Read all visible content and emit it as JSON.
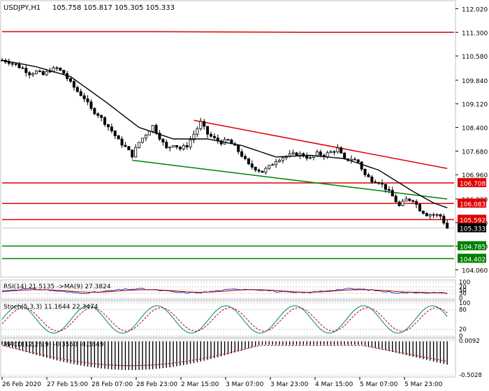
{
  "header": {
    "symbol": "USDJPY,H1",
    "ohlc": "105.758 105.817 105.305 105.333"
  },
  "chart_data": {
    "type": "candlestick",
    "price_axis": {
      "ylim": [
        103.9,
        112.2
      ],
      "ticks": [
        "112.020",
        "111.300",
        "110.580",
        "109.840",
        "109.120",
        "108.400",
        "107.680",
        "106.960",
        "106.220",
        "105.500",
        "104.780",
        "104.060"
      ]
    },
    "x_ticks": [
      "26 Feb 2020",
      "27 Feb 15:00",
      "28 Feb 07:00",
      "28 Feb 23:00",
      "2 Mar 15:00",
      "3 Mar 07:00",
      "3 Mar 23:00",
      "4 Mar 15:00",
      "5 Mar 07:00",
      "5 Mar 23:00"
    ],
    "current_price": 105.333,
    "ohlc_last": {
      "open": 105.758,
      "high": 105.817,
      "low": 105.305,
      "close": 105.333
    },
    "close_path": [
      [
        0,
        110.45
      ],
      [
        2,
        110.4
      ],
      [
        4,
        110.3
      ],
      [
        6,
        110.2
      ],
      [
        8,
        110.05
      ],
      [
        10,
        110.1
      ],
      [
        12,
        110.0
      ],
      [
        14,
        110.15
      ],
      [
        16,
        110.2
      ],
      [
        18,
        110.05
      ],
      [
        20,
        109.75
      ],
      [
        22,
        109.5
      ],
      [
        24,
        109.3
      ],
      [
        26,
        108.95
      ],
      [
        28,
        108.8
      ],
      [
        30,
        108.55
      ],
      [
        32,
        108.3
      ],
      [
        34,
        108.0
      ],
      [
        36,
        107.8
      ],
      [
        38,
        107.55
      ],
      [
        40,
        107.95
      ],
      [
        42,
        108.2
      ],
      [
        44,
        108.45
      ],
      [
        46,
        108.1
      ],
      [
        48,
        107.75
      ],
      [
        50,
        107.9
      ],
      [
        52,
        107.75
      ],
      [
        54,
        107.85
      ],
      [
        56,
        108.2
      ],
      [
        58,
        108.55
      ],
      [
        60,
        108.2
      ],
      [
        62,
        108.05
      ],
      [
        64,
        107.95
      ],
      [
        66,
        108.0
      ],
      [
        68,
        107.8
      ],
      [
        70,
        107.55
      ],
      [
        72,
        107.25
      ],
      [
        74,
        107.15
      ],
      [
        76,
        107.05
      ],
      [
        78,
        107.2
      ],
      [
        80,
        107.4
      ],
      [
        82,
        107.5
      ],
      [
        84,
        107.55
      ],
      [
        86,
        107.6
      ],
      [
        88,
        107.55
      ],
      [
        90,
        107.45
      ],
      [
        92,
        107.6
      ],
      [
        94,
        107.55
      ],
      [
        96,
        107.65
      ],
      [
        98,
        107.75
      ],
      [
        100,
        107.4
      ],
      [
        102,
        107.45
      ],
      [
        104,
        107.35
      ],
      [
        106,
        106.95
      ],
      [
        108,
        106.8
      ],
      [
        110,
        106.75
      ],
      [
        112,
        106.55
      ],
      [
        114,
        106.3
      ],
      [
        116,
        106.0
      ],
      [
        118,
        106.2
      ],
      [
        120,
        106.2
      ],
      [
        122,
        105.9
      ],
      [
        124,
        105.75
      ],
      [
        126,
        105.75
      ],
      [
        128,
        105.7
      ],
      [
        130,
        105.333
      ]
    ],
    "ma_path": [
      [
        0,
        110.45
      ],
      [
        10,
        110.25
      ],
      [
        20,
        109.95
      ],
      [
        30,
        109.2
      ],
      [
        40,
        108.4
      ],
      [
        50,
        108.05
      ],
      [
        60,
        108.05
      ],
      [
        70,
        107.85
      ],
      [
        80,
        107.5
      ],
      [
        90,
        107.55
      ],
      [
        100,
        107.45
      ],
      [
        110,
        107.1
      ],
      [
        120,
        106.45
      ],
      [
        126,
        106.1
      ],
      [
        130,
        105.95
      ]
    ],
    "resistance_lines": [
      {
        "label": "106.708",
        "value": 106.708
      },
      {
        "label": "106.083",
        "value": 106.083
      },
      {
        "label": "105.592",
        "value": 105.592
      }
    ],
    "support_lines": [
      {
        "label": "104.785",
        "value": 104.785
      },
      {
        "label": "104.402",
        "value": 104.402
      }
    ],
    "top_resistance": {
      "value_start": 111.32,
      "value_end": 111.3
    },
    "trend_red": {
      "from": [
        56,
        108.62
      ],
      "to": [
        130,
        107.15
      ]
    },
    "trend_green": {
      "from": [
        38,
        107.4
      ],
      "to": [
        130,
        106.22
      ]
    },
    "indicators": [
      {
        "name": "rsi",
        "label": "RSI(14) 21.5135 ->MA(9) 27.3824",
        "ticks": [
          "100",
          "70",
          "50",
          "30",
          "0"
        ],
        "ylim": [
          0,
          100
        ]
      },
      {
        "name": "stoch",
        "label": "Stoch(5,3,3) 11.1644 22.3474",
        "ticks": [
          "100",
          "80",
          "20",
          "0"
        ],
        "ylim": [
          0,
          100
        ]
      },
      {
        "name": "macd",
        "label": "MACD(12,26,9) -0.3550 -0.3849",
        "ticks": [
          "0.0092",
          "-0.5028"
        ],
        "ylim": [
          -0.5028,
          0.0092
        ]
      }
    ]
  },
  "colors": {
    "up": "#000000",
    "down": "#000000",
    "ma": "#000000",
    "resist": "#e00000",
    "support": "#008000",
    "trend_red": "#e00000",
    "trend_green": "#008000",
    "price_box": "#000000"
  }
}
